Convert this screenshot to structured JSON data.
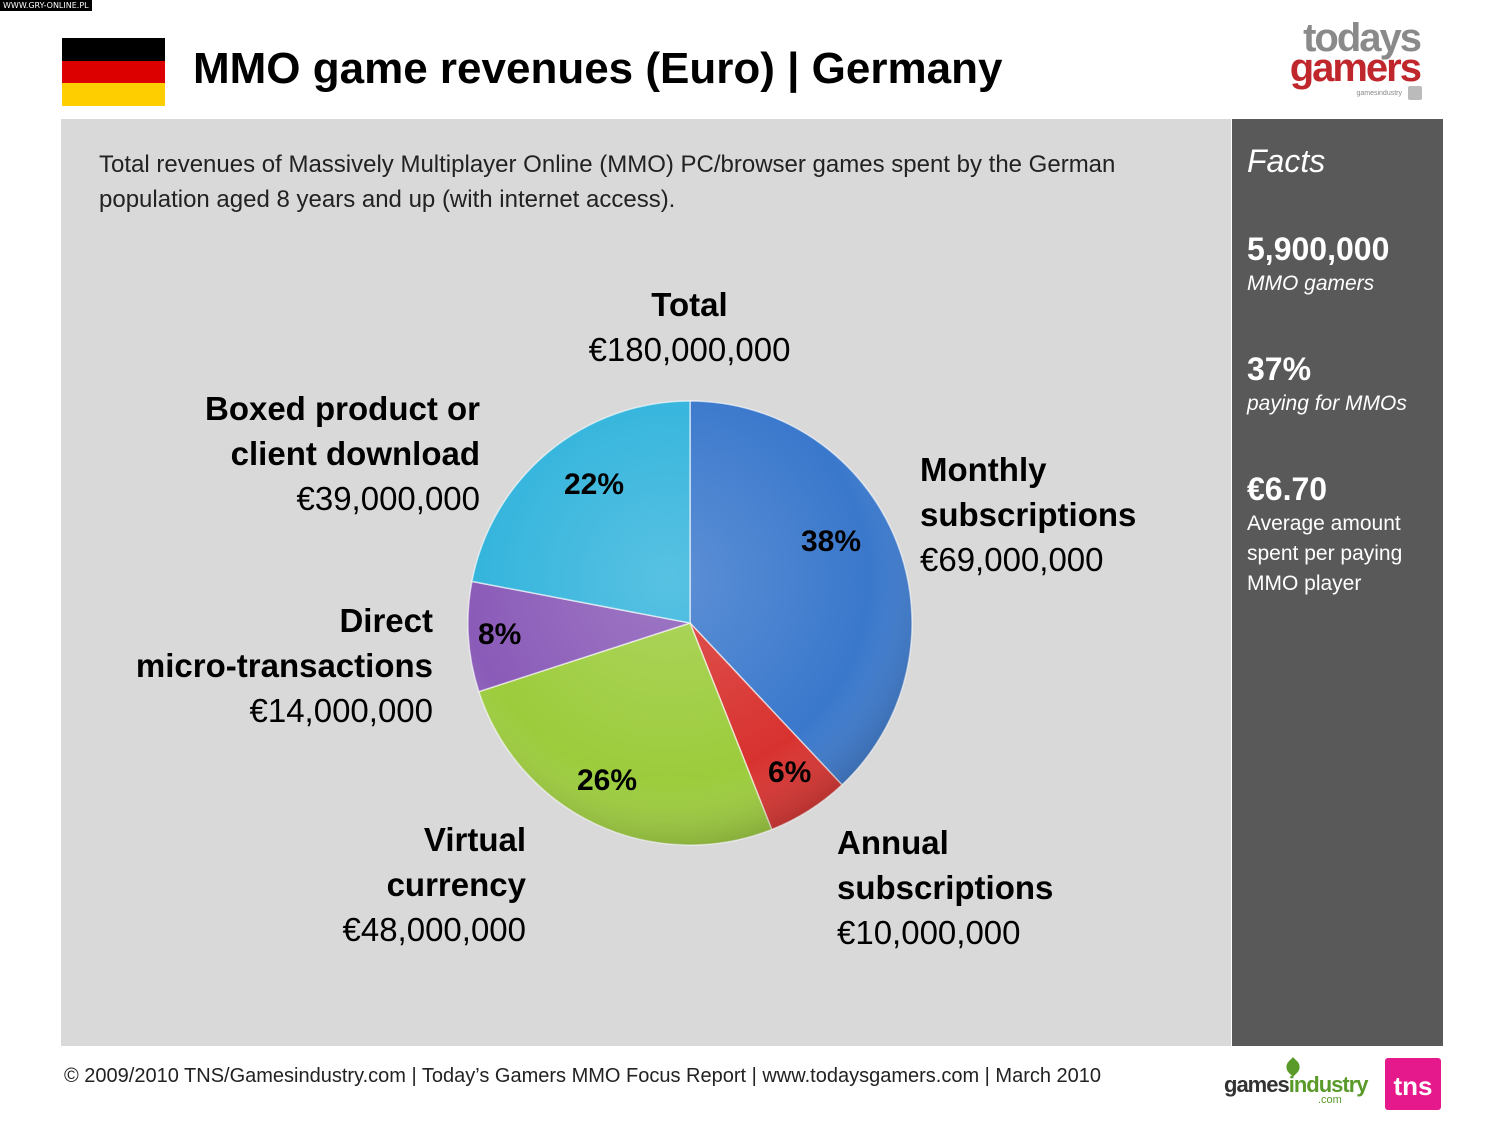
{
  "watermark": "WWW.GRY-ONLINE.PL",
  "header": {
    "title": "MMO game revenues (Euro) | Germany",
    "flag_colors": [
      "#000000",
      "#dd0000",
      "#ffce00"
    ],
    "logo_line1": "todays",
    "logo_line2": "gamers",
    "logo_sub": "gamesindustry"
  },
  "intro_text": "Total revenues of Massively Multiplayer Online (MMO) PC/browser games spent by the German population aged 8 years and up (with internet access).",
  "facts": {
    "heading": "Facts",
    "items": [
      {
        "value": "5,900,000",
        "caption": "MMO gamers"
      },
      {
        "value": "37%",
        "caption": "paying for MMOs"
      },
      {
        "value": "€6.70",
        "caption": "Average amount spent per paying MMO player"
      }
    ]
  },
  "chart_data": {
    "type": "pie",
    "title": "Total",
    "total_label": "€180,000,000",
    "slices": [
      {
        "label_line1": "Monthly",
        "label_line2": "subscriptions",
        "amount": "€69,000,000",
        "percent": 38,
        "percent_label": "38%",
        "color": "#3a78cc"
      },
      {
        "label_line1": "Annual",
        "label_line2": "subscriptions",
        "amount": "€10,000,000",
        "percent": 6,
        "percent_label": "6%",
        "color": "#d8322f"
      },
      {
        "label_line1": "Virtual",
        "label_line2": "currency",
        "amount": "€48,000,000",
        "percent": 26,
        "percent_label": "26%",
        "color": "#9ccc3c"
      },
      {
        "label_line1": "Direct",
        "label_line2": "micro-transactions",
        "amount": "€14,000,000",
        "percent": 8,
        "percent_label": "8%",
        "color": "#8a5bb8"
      },
      {
        "label_line1": "Boxed product or",
        "label_line2": "client download",
        "amount": "€39,000,000",
        "percent": 22,
        "percent_label": "22%",
        "color": "#33b4dc"
      }
    ]
  },
  "footer": {
    "text": "© 2009/2010 TNS/Gamesindustry.com | Today’s Gamers MMO Focus Report | www.todaysgamers.com | March 2010",
    "gi_logo_a": "games",
    "gi_logo_b": "industry",
    "gi_logo_c": ".com",
    "tns_logo": "tns"
  }
}
